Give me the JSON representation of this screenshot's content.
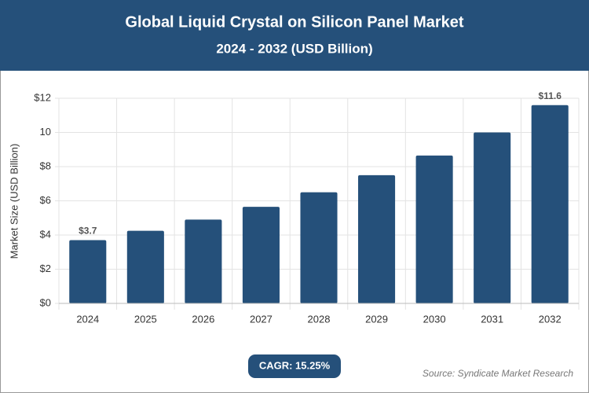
{
  "chart_data": {
    "type": "bar",
    "title": "Global Liquid Crystal on Silicon Panel Market",
    "subtitle": "2024 - 2032 (USD Billion)",
    "y_label": "Market Size (USD Billion)",
    "categories": [
      "2024",
      "2025",
      "2026",
      "2027",
      "2028",
      "2029",
      "2030",
      "2031",
      "2032"
    ],
    "values": [
      3.7,
      4.25,
      4.9,
      5.65,
      6.5,
      7.5,
      8.65,
      10.0,
      11.6
    ],
    "value_labels": [
      "$3.7",
      null,
      null,
      null,
      null,
      null,
      null,
      null,
      "$11.6"
    ],
    "color": "#25507a",
    "ylim": [
      0,
      12
    ],
    "yticks": [
      {
        "value": 0,
        "label": "$0"
      },
      {
        "value": 2,
        "label": "$2"
      },
      {
        "value": 4,
        "label": "$4"
      },
      {
        "value": 6,
        "label": "$6"
      },
      {
        "value": 8,
        "label": "$8"
      },
      {
        "value": 10,
        "label": "10"
      },
      {
        "value": 12,
        "label": "$12"
      }
    ],
    "grid": true,
    "cagr": "CAGR: 15.25%",
    "source": "Source: Syndicate Market Research"
  }
}
